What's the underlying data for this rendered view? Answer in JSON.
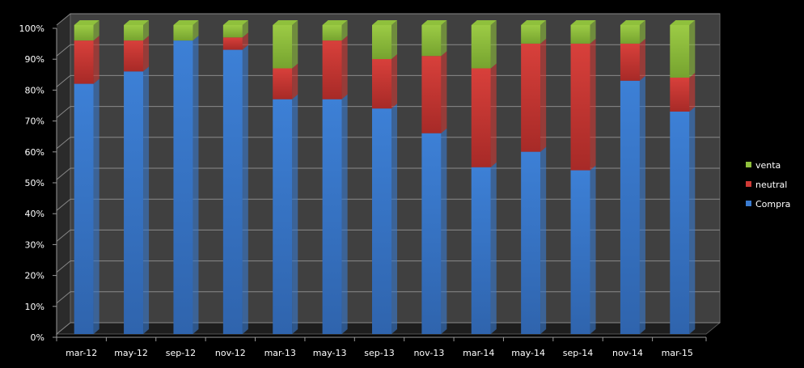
{
  "chart_data": {
    "type": "bar",
    "stacked": "percent",
    "three_d": true,
    "title": "",
    "xlabel": "",
    "ylabel": "",
    "ylim": [
      0,
      100
    ],
    "y_ticks": [
      "0%",
      "10%",
      "20%",
      "30%",
      "40%",
      "50%",
      "60%",
      "70%",
      "80%",
      "90%",
      "100%"
    ],
    "grid": true,
    "legend_position": "right",
    "categories": [
      "mar-12",
      "may-12",
      "sep-12",
      "nov-12",
      "mar-13",
      "may-13",
      "sep-13",
      "nov-13",
      "mar-14",
      "may-14",
      "sep-14",
      "nov-14",
      "mar-15"
    ],
    "series": [
      {
        "name": "Compra",
        "color": "#3a7bd0",
        "values": [
          81,
          85,
          95,
          92,
          76,
          76,
          73,
          65,
          54,
          59,
          53,
          82,
          72
        ]
      },
      {
        "name": "neutral",
        "color": "#d03a36",
        "values": [
          14,
          10,
          0,
          4,
          10,
          19,
          16,
          25,
          32,
          35,
          41,
          12,
          11
        ]
      },
      {
        "name": "venta",
        "color": "#8fc03c",
        "values": [
          5,
          5,
          5,
          4,
          14,
          5,
          11,
          10,
          14,
          6,
          6,
          6,
          17
        ]
      }
    ],
    "legend_order": [
      "venta",
      "neutral",
      "Compra"
    ]
  }
}
